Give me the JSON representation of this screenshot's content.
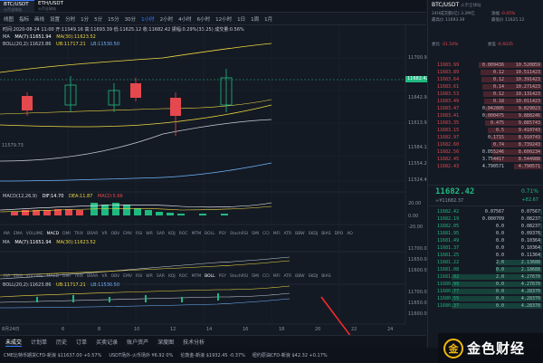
{
  "tabs": [
    {
      "pair": "BTC/USDT",
      "sub": "火币全球站",
      "active": true
    },
    {
      "pair": "ETH/USDT",
      "sub": "火币全球站",
      "active": false
    }
  ],
  "toolbar": {
    "items": [
      "分时",
      "1分",
      "5分",
      "15分",
      "30分",
      "1小时",
      "2小时",
      "4小时",
      "6小时",
      "12小时",
      "1日",
      "1周",
      "1月"
    ],
    "selected": "1小时",
    "prefix": [
      "线图",
      "指标",
      "画线",
      "设置"
    ]
  },
  "chart": {
    "info_line": "时间:2020-08-24 11:00 开:11649.16 高:11693.39 低:11625.12 收:11682.42 振幅:0.29%(33.25) 成交量:0.56%",
    "ma_legend": [
      "MA",
      "MA(7):11651.94",
      "MA(30):11623.52"
    ],
    "boll_legend": [
      "BOLL(20,2):11623.86",
      "UB:11717.21",
      "LB:11530.50"
    ],
    "price_labels": [
      "11700.95",
      "11682.42",
      "11642.99",
      "11613.92",
      "11584.13",
      "11554.29",
      "11524.45"
    ],
    "current_price": "11682.42",
    "left_price": "11579.73",
    "macd_legend": [
      "MACD(12,26,9)",
      "DIF:14.70",
      "DEA:11.87",
      "MACD:5.66"
    ],
    "macd_labels": [
      "20.00",
      "0.00",
      "-20.00"
    ],
    "indicator_tabs": [
      "MA",
      "EMA",
      "VOLUME",
      "MACD",
      "DMI",
      "TRIX",
      "BRAR",
      "VR",
      "OBV",
      "EMV",
      "RSI",
      "WR",
      "SAR",
      "KDJ",
      "ROC",
      "MTM",
      "BOLL",
      "PSY",
      "StochRSI",
      "SMI",
      "CCI",
      "MFI",
      "ATR",
      "BBW",
      "SKDJ",
      "BIAS",
      "DPO",
      "AO"
    ],
    "ma_legend2": [
      "MA",
      "MA(7):11651.94",
      "MA(30):11623.52"
    ],
    "mid_labels": [
      "11700.00",
      "11650.00",
      "11600.00"
    ],
    "indicator_tabs2": [
      "MA",
      "EMA",
      "VOLUME",
      "MACD",
      "DMI",
      "TRIX",
      "BRAR",
      "VR",
      "OBV",
      "EMV",
      "RSI",
      "WR",
      "SAR",
      "KDJ",
      "ROC",
      "MTM",
      "BOLL",
      "PSY",
      "StochRSI",
      "SMI",
      "CCI",
      "MFI",
      "ATR",
      "BBW",
      "SKDJ",
      "BIAS"
    ],
    "boll_legend2": [
      "BOLL(20,2):11623.86",
      "UB:11717.21",
      "LB:11530.50"
    ],
    "low_labels": [
      "11700.00",
      "11650.00",
      "11600.00"
    ],
    "x_labels": [
      "8月24日",
      "6",
      "8",
      "10",
      "12",
      "14",
      "16",
      "18",
      "20",
      "22",
      "24"
    ]
  },
  "bottom_tabs": [
    "未成交",
    "计划单",
    "历史",
    "订单",
    "买卖记录",
    "账户资产",
    "深度图",
    "技术分析"
  ],
  "ticker": [
    {
      "name": "CME比特币期货CFD-新浪",
      "price": "$11637.00",
      "chg": "+0.57%",
      "dir": "up"
    },
    {
      "name": "USDT场外-火币场外",
      "price": "¥6.92",
      "chg": "0%",
      "dir": "up"
    },
    {
      "name": "伦敦金-新浪",
      "price": "$1932.45",
      "chg": "-0.37%",
      "dir": "down"
    },
    {
      "name": "纽约原油CFD-新浪",
      "price": "$42.32",
      "chg": "+0.17%",
      "dir": "up"
    }
  ],
  "right": {
    "pair": "BTC/USDT",
    "exchange": "火币全球站",
    "stats": [
      {
        "k": "24H成交额(亿)",
        "v": "3.2M亿"
      },
      {
        "k": "涨幅",
        "v": "-0.05%"
      },
      {
        "k": "最高价",
        "v": "11693.39"
      },
      {
        "k": "最低价",
        "v": "11625.12"
      },
      {
        "k": "委比",
        "v": "-31.54%"
      },
      {
        "k": "委差",
        "v": "-6.6035"
      }
    ],
    "asks": [
      {
        "p": "11683.99",
        "a": "0.009436",
        "c": "10.520859"
      },
      {
        "p": "11683.89",
        "a": "0.12",
        "c": "10.511423"
      },
      {
        "p": "11683.64",
        "a": "0.12",
        "c": "10.391423"
      },
      {
        "p": "11683.61",
        "a": "0.14",
        "c": "10.271423"
      },
      {
        "p": "11683.53",
        "a": "0.12",
        "c": "10.131423"
      },
      {
        "p": "11683.49",
        "a": "0.18",
        "c": "10.011423"
      },
      {
        "p": "11683.47",
        "a": "0.042805",
        "c": "9.829023"
      },
      {
        "p": "11683.41",
        "a": "0.000475",
        "c": "9.888246"
      },
      {
        "p": "11683.35",
        "a": "0.475",
        "c": "9.885743"
      },
      {
        "p": "11683.15",
        "a": "0.5",
        "c": "9.410743"
      },
      {
        "p": "11682.97",
        "a": "0.1715",
        "c": "8.910743"
      },
      {
        "p": "11682.60",
        "a": "0.74",
        "c": "8.739243"
      },
      {
        "p": "11682.56",
        "a": "0.055246",
        "c": "8.600234"
      },
      {
        "p": "11682.45",
        "a": "3.754417",
        "c": "8.544988"
      },
      {
        "p": "11682.43",
        "a": "4.790571",
        "c": "4.790571"
      }
    ],
    "last": "11682.42",
    "last_cny": "≈¥11682.37",
    "last_chg": "0.71%",
    "last_chg2": "+82.67",
    "bids": [
      {
        "p": "11682.42",
        "a": "0.07567",
        "c": "0.07567"
      },
      {
        "p": "11682.19",
        "a": "0.000709",
        "c": "0.08237"
      },
      {
        "p": "11682.05",
        "a": "0.0",
        "c": "0.08237"
      },
      {
        "p": "11681.95",
        "a": "0.0",
        "c": "0.09376"
      },
      {
        "p": "11681.49",
        "a": "0.0",
        "c": "0.10364"
      },
      {
        "p": "11681.37",
        "a": "0.0",
        "c": "0.10364"
      },
      {
        "p": "11681.25",
        "a": "0.0",
        "c": "0.11364"
      },
      {
        "p": "11681.22",
        "a": "2.0",
        "c": "2.13688"
      },
      {
        "p": "11681.08",
        "a": "0.0",
        "c": "2.18688"
      },
      {
        "p": "11681.02",
        "a": "2.0",
        "c": "4.27670"
      },
      {
        "p": "11680.99",
        "a": "0.0",
        "c": "4.27670"
      },
      {
        "p": "11680.77",
        "a": "0.0",
        "c": "4.28370"
      },
      {
        "p": "11680.55",
        "a": "0.0",
        "c": "4.28370"
      },
      {
        "p": "11680.37",
        "a": "0.0",
        "c": "4.28370"
      }
    ]
  },
  "watermark": {
    "logo": "金",
    "text": "金色财经"
  }
}
